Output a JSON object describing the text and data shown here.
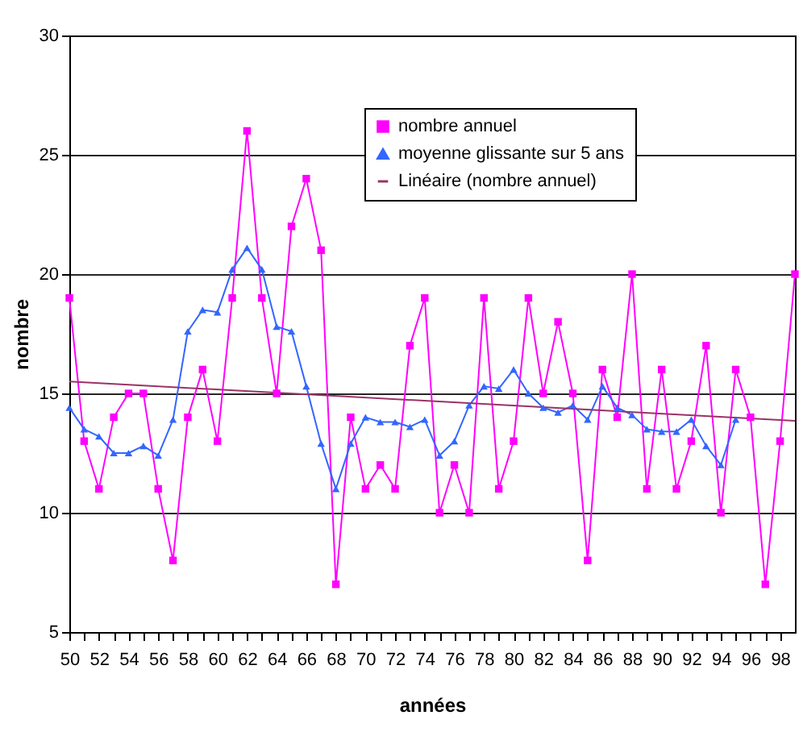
{
  "chart_data": {
    "type": "line",
    "xlabel": "années",
    "ylabel": "nombre",
    "x": [
      50,
      51,
      52,
      53,
      54,
      55,
      56,
      57,
      58,
      59,
      60,
      61,
      62,
      63,
      64,
      65,
      66,
      67,
      68,
      69,
      70,
      71,
      72,
      73,
      74,
      75,
      76,
      77,
      78,
      79,
      80,
      81,
      82,
      83,
      84,
      85,
      86,
      87,
      88,
      89,
      90,
      91,
      92,
      93,
      94,
      95,
      96,
      97,
      98,
      99
    ],
    "series": [
      {
        "name": "nombre annuel",
        "type": "line",
        "color": "#ff00ff",
        "marker": "square",
        "values": [
          19,
          13,
          11,
          14,
          15,
          15,
          11,
          8,
          14,
          16,
          13,
          19,
          26,
          19,
          15,
          22,
          24,
          21,
          7,
          14,
          11,
          12,
          11,
          17,
          19,
          10,
          12,
          10,
          19,
          11,
          13,
          19,
          15,
          18,
          15,
          8,
          16,
          14,
          20,
          11,
          16,
          11,
          13,
          17,
          10,
          16,
          14,
          7,
          13,
          20
        ]
      },
      {
        "name": "moyenne glissante sur 5 ans",
        "type": "line",
        "color": "#3366ff",
        "marker": "triangle",
        "values": [
          14.4,
          13.5,
          13.2,
          12.5,
          12.5,
          12.8,
          12.4,
          13.9,
          17.6,
          18.5,
          18.4,
          20.2,
          21.1,
          20.2,
          17.8,
          17.6,
          15.3,
          12.9,
          11.0,
          12.9,
          14.0,
          13.8,
          13.8,
          13.6,
          13.9,
          12.4,
          13.0,
          14.5,
          15.3,
          15.2,
          16.0,
          15.0,
          14.4,
          14.2,
          14.5,
          13.9,
          15.3,
          14.4,
          14.1,
          13.5,
          13.4,
          13.4,
          13.9,
          12.8,
          12.0,
          13.9,
          null,
          null,
          null,
          null
        ]
      },
      {
        "name": "Linéaire (nombre annuel)",
        "type": "line",
        "color": "#993366",
        "marker": "none",
        "x": [
          50,
          99
        ],
        "values": [
          15.5,
          13.85
        ]
      }
    ],
    "xlim": [
      50,
      99
    ],
    "xticks": [
      50,
      {
        "value": 51,
        "label": null
      },
      52,
      {
        "value": 53,
        "label": null
      },
      54,
      {
        "value": 55,
        "label": null
      },
      56,
      {
        "value": 57,
        "label": null
      },
      58,
      {
        "value": 59,
        "label": null
      },
      60,
      {
        "value": 61,
        "label": null
      },
      62,
      {
        "value": 63,
        "label": null
      },
      64,
      {
        "value": 65,
        "label": null
      },
      66,
      {
        "value": 67,
        "label": null
      },
      68,
      {
        "value": 69,
        "label": null
      },
      70,
      {
        "value": 71,
        "label": null
      },
      72,
      {
        "value": 73,
        "label": null
      },
      74,
      {
        "value": 75,
        "label": null
      },
      76,
      {
        "value": 77,
        "label": null
      },
      78,
      {
        "value": 79,
        "label": null
      },
      80,
      {
        "value": 81,
        "label": null
      },
      82,
      {
        "value": 83,
        "label": null
      },
      84,
      {
        "value": 85,
        "label": null
      },
      86,
      {
        "value": 87,
        "label": null
      },
      88,
      {
        "value": 89,
        "label": null
      },
      90,
      {
        "value": 91,
        "label": null
      },
      92,
      {
        "value": 93,
        "label": null
      },
      94,
      {
        "value": 95,
        "label": null
      },
      96,
      {
        "value": 97,
        "label": null
      },
      98
    ],
    "ylim": [
      5,
      30
    ],
    "yticks": [
      5,
      10,
      15,
      20,
      25,
      30
    ],
    "grid": "y",
    "legend": "top right"
  }
}
